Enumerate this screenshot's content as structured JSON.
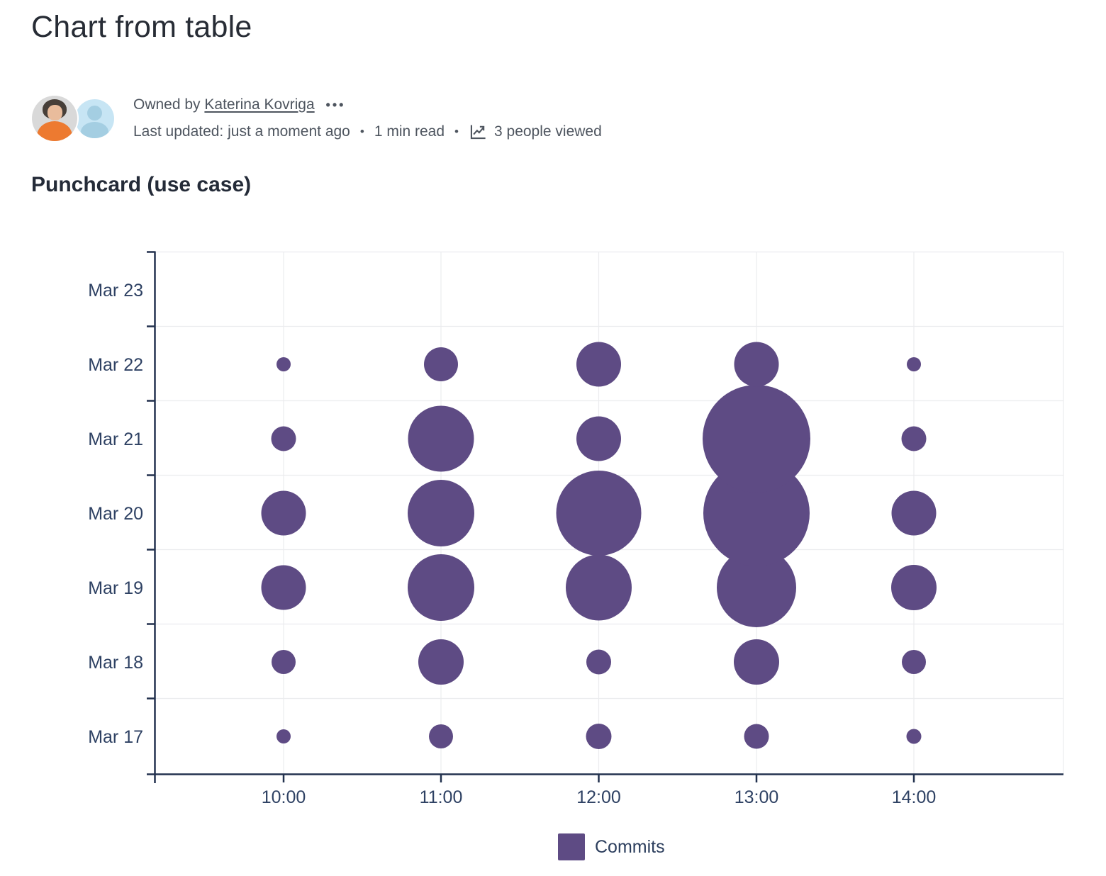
{
  "page": {
    "title": "Chart from table",
    "byline": {
      "owned_by_prefix": "Owned by",
      "owner": "Katerina Kovriga",
      "more_actions": "•••",
      "last_updated": "Last updated: just a moment ago",
      "separator": "•",
      "read_time": "1 min read",
      "views": "3 people viewed",
      "views_icon": "trend-chart-icon"
    },
    "section_heading": "Punchcard (use case)"
  },
  "colors": {
    "title_text": "#272C35",
    "heading_text": "#242B38",
    "meta_text": "#4E555F",
    "axis": "#22314E",
    "label": "#2E4163",
    "grid": "#EBECEE",
    "bubble": "#5E4B84",
    "legend_text": "#2C3E5D"
  },
  "chart_data": {
    "type": "scatter",
    "subtype": "punchcard-bubble",
    "title": "Punchcard (use case)",
    "xlabel": "",
    "ylabel": "",
    "x_categories": [
      "10:00",
      "11:00",
      "12:00",
      "13:00",
      "14:00"
    ],
    "y_categories": [
      "Mar 17",
      "Mar 18",
      "Mar 19",
      "Mar 20",
      "Mar 21",
      "Mar 22",
      "Mar 23"
    ],
    "y_axis_bottom_to_top": true,
    "grid": true,
    "legend_position": "bottom",
    "bubble_sizing": "area proportional to commits",
    "legend": [
      {
        "label": "Commits",
        "color": "#5E4B84"
      }
    ],
    "points": [
      {
        "date": "Mar 17",
        "time": "10:00",
        "commits": 1,
        "radius_px": 10
      },
      {
        "date": "Mar 17",
        "time": "11:00",
        "commits": 3,
        "radius_px": 17
      },
      {
        "date": "Mar 17",
        "time": "12:00",
        "commits": 3,
        "radius_px": 18
      },
      {
        "date": "Mar 17",
        "time": "13:00",
        "commits": 3,
        "radius_px": 17.5
      },
      {
        "date": "Mar 17",
        "time": "14:00",
        "commits": 1,
        "radius_px": 10.5
      },
      {
        "date": "Mar 18",
        "time": "10:00",
        "commits": 3,
        "radius_px": 17
      },
      {
        "date": "Mar 18",
        "time": "11:00",
        "commits": 10,
        "radius_px": 32
      },
      {
        "date": "Mar 18",
        "time": "12:00",
        "commits": 3,
        "radius_px": 17.5
      },
      {
        "date": "Mar 18",
        "time": "13:00",
        "commits": 10,
        "radius_px": 32
      },
      {
        "date": "Mar 18",
        "time": "14:00",
        "commits": 3,
        "radius_px": 17
      },
      {
        "date": "Mar 19",
        "time": "10:00",
        "commits": 10,
        "radius_px": 31.5
      },
      {
        "date": "Mar 19",
        "time": "11:00",
        "commits": 22,
        "radius_px": 47
      },
      {
        "date": "Mar 19",
        "time": "12:00",
        "commits": 22,
        "radius_px": 46.5
      },
      {
        "date": "Mar 19",
        "time": "13:00",
        "commits": 31,
        "radius_px": 56
      },
      {
        "date": "Mar 19",
        "time": "14:00",
        "commits": 10,
        "radius_px": 32
      },
      {
        "date": "Mar 20",
        "time": "10:00",
        "commits": 10,
        "radius_px": 31.5
      },
      {
        "date": "Mar 20",
        "time": "11:00",
        "commits": 22,
        "radius_px": 47
      },
      {
        "date": "Mar 20",
        "time": "12:00",
        "commits": 36,
        "radius_px": 60
      },
      {
        "date": "Mar 20",
        "time": "13:00",
        "commits": 56,
        "radius_px": 75
      },
      {
        "date": "Mar 20",
        "time": "14:00",
        "commits": 10,
        "radius_px": 31.5
      },
      {
        "date": "Mar 21",
        "time": "10:00",
        "commits": 3,
        "radius_px": 17.5
      },
      {
        "date": "Mar 21",
        "time": "11:00",
        "commits": 22,
        "radius_px": 46.5
      },
      {
        "date": "Mar 21",
        "time": "12:00",
        "commits": 10,
        "radius_px": 31.5
      },
      {
        "date": "Mar 21",
        "time": "13:00",
        "commits": 58,
        "radius_px": 76
      },
      {
        "date": "Mar 21",
        "time": "14:00",
        "commits": 3,
        "radius_px": 17.5
      },
      {
        "date": "Mar 22",
        "time": "10:00",
        "commits": 1,
        "radius_px": 10
      },
      {
        "date": "Mar 22",
        "time": "11:00",
        "commits": 6,
        "radius_px": 24
      },
      {
        "date": "Mar 22",
        "time": "12:00",
        "commits": 10,
        "radius_px": 31.5
      },
      {
        "date": "Mar 22",
        "time": "13:00",
        "commits": 10,
        "radius_px": 31.5
      },
      {
        "date": "Mar 22",
        "time": "14:00",
        "commits": 1,
        "radius_px": 10
      }
    ]
  }
}
